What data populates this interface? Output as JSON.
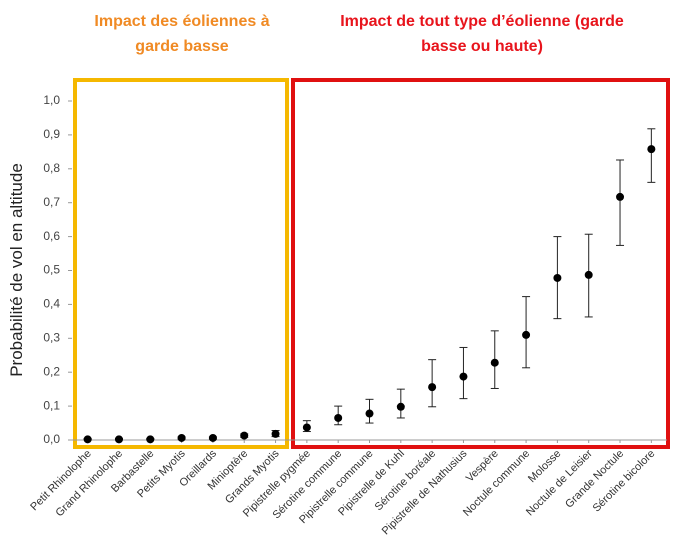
{
  "chart_data": {
    "type": "errorbar",
    "ylabel": "Probabilité de vol en altitude",
    "annotations": [
      {
        "lines": [
          "Impact des éoliennes à",
          "garde basse"
        ],
        "color": "#f08a24"
      },
      {
        "lines": [
          "Impact de tout type d’éolienne (garde",
          "basse ou haute)"
        ],
        "color": "#e8141c"
      }
    ],
    "categories": [
      "Petit Rhinolophe",
      "Grand Rhinolophe",
      "Barbastelle",
      "Petits Myotis",
      "Oreillards",
      "Minioptère",
      "Grands Myotis",
      "Pipistrelle pygmée",
      "Sérotine commune",
      "Pipistrelle commune",
      "Pipistrelle de Kuhl",
      "Sérotine boréale",
      "Pipistrelle de Nathusius",
      "Vespère",
      "Noctule commune",
      "Molosse",
      "Noctule de Leisier",
      "Grande Noctule",
      "Sérotine bicolore"
    ],
    "values": [
      0.002,
      0.002,
      0.002,
      0.006,
      0.006,
      0.013,
      0.018,
      0.037,
      0.065,
      0.078,
      0.098,
      0.156,
      0.187,
      0.228,
      0.31,
      0.478,
      0.487,
      0.717,
      0.858
    ],
    "lower": [
      0.001,
      0.001,
      0.001,
      0.003,
      0.003,
      0.008,
      0.01,
      0.025,
      0.045,
      0.05,
      0.065,
      0.098,
      0.122,
      0.152,
      0.213,
      0.358,
      0.363,
      0.574,
      0.76
    ],
    "upper": [
      0.004,
      0.004,
      0.004,
      0.009,
      0.009,
      0.018,
      0.028,
      0.057,
      0.1,
      0.12,
      0.15,
      0.237,
      0.273,
      0.322,
      0.423,
      0.6,
      0.607,
      0.826,
      0.918
    ],
    "color": "#000000",
    "ylim": [
      0,
      1
    ],
    "yticks": [
      {
        "value": 0,
        "label": "0,0"
      },
      {
        "value": 0.1,
        "label": "0,1"
      },
      {
        "value": 0.2,
        "label": "0,2"
      },
      {
        "value": 0.3,
        "label": "0,3"
      },
      {
        "value": 0.4,
        "label": "0,4"
      },
      {
        "value": 0.5,
        "label": "0,5"
      },
      {
        "value": 0.6,
        "label": "0,6"
      },
      {
        "value": 0.7,
        "label": "0,7"
      },
      {
        "value": 0.8,
        "label": "0,8"
      },
      {
        "value": 0.9,
        "label": "0,9"
      },
      {
        "value": 1,
        "label": "1,0"
      }
    ],
    "grid": false
  }
}
